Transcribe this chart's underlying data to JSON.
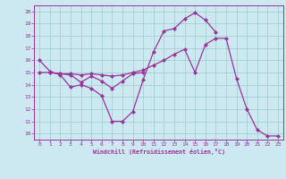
{
  "xlabel": "Windchill (Refroidissement éolien,°C)",
  "bg_color": "#cce8f0",
  "line_color": "#993399",
  "grid_color": "#99cccc",
  "xlim": [
    -0.5,
    23.5
  ],
  "ylim": [
    9.5,
    20.5
  ],
  "xticks": [
    0,
    1,
    2,
    3,
    4,
    5,
    6,
    7,
    8,
    9,
    10,
    11,
    12,
    13,
    14,
    15,
    16,
    17,
    18,
    19,
    20,
    21,
    22,
    23
  ],
  "yticks": [
    10,
    11,
    12,
    13,
    14,
    15,
    16,
    17,
    18,
    19,
    20
  ],
  "line1_x": [
    0,
    1,
    2,
    3,
    4,
    5,
    6,
    7,
    8,
    9,
    10,
    11,
    12,
    13,
    14,
    15,
    16,
    17
  ],
  "line1_y": [
    16.0,
    15.1,
    14.8,
    13.8,
    14.0,
    13.7,
    13.1,
    11.0,
    11.0,
    11.8,
    14.4,
    16.7,
    18.4,
    18.6,
    19.4,
    19.9,
    19.3,
    18.3
  ],
  "line2_x": [
    0,
    1,
    2,
    3,
    4,
    5,
    6,
    7,
    8,
    9,
    10,
    11,
    12,
    13,
    14,
    15,
    16,
    17,
    18,
    19,
    20,
    21,
    22,
    23
  ],
  "line2_y": [
    15.0,
    15.0,
    14.9,
    14.9,
    14.8,
    14.9,
    14.8,
    14.7,
    14.8,
    15.0,
    15.2,
    15.6,
    16.0,
    16.5,
    16.9,
    15.0,
    17.3,
    17.8,
    17.8,
    14.5,
    12.0,
    10.3,
    9.8,
    9.8
  ],
  "line3_x": [
    1,
    2,
    3,
    4,
    5,
    6,
    7,
    8,
    9,
    10
  ],
  "line3_y": [
    15.0,
    14.9,
    14.8,
    14.2,
    14.7,
    14.3,
    13.7,
    14.3,
    14.9,
    15.0
  ]
}
